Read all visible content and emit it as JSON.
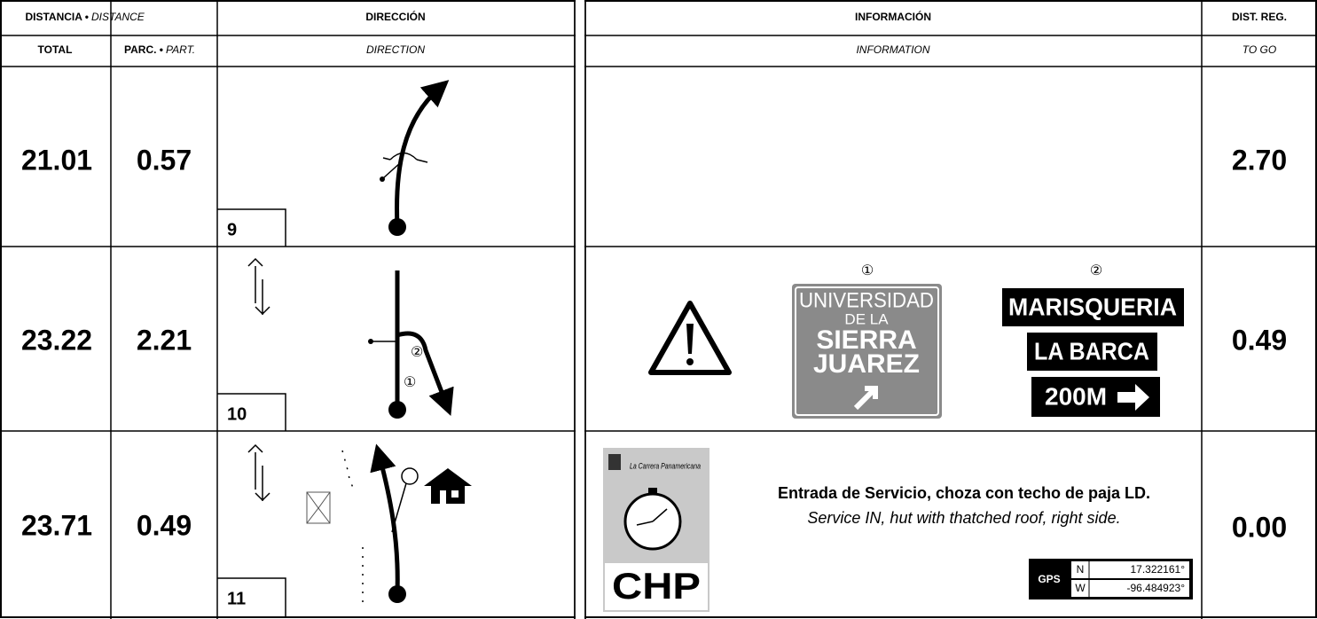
{
  "header": {
    "distance": "DISTANCIA •",
    "distance_en": "DISTANCE",
    "direction": "DIRECCIÓN",
    "information": "INFORMACIÓN",
    "to_go": "DIST. REG."
  },
  "subheader": {
    "total": "TOTAL",
    "partial": "PARC. •",
    "partial_en": "PART.",
    "direction": "DIRECTION",
    "information": "INFORMATION",
    "to_go": "TO GO"
  },
  "rows": [
    {
      "total": "21.01",
      "partial": "0.57",
      "number": "9",
      "to_go": "2.70"
    },
    {
      "total": "23.22",
      "partial": "2.21",
      "number": "10",
      "to_go": "0.49",
      "diagram_labels": [
        "②",
        "①"
      ],
      "signs": [
        {
          "marker": "①",
          "lines": [
            "UNIVERSIDAD",
            "DE LA",
            "SIERRA",
            "JUAREZ"
          ]
        },
        {
          "marker": "②",
          "lines": [
            "MARISQUERIA",
            "LA BARCA",
            "200M"
          ]
        }
      ]
    },
    {
      "total": "23.71",
      "partial": "0.49",
      "number": "11",
      "to_go": "0.00",
      "logo": {
        "title": "La Carrera Panamericana",
        "code": "CHP"
      },
      "text": "Entrada de Servicio, choza con techo de paja LD.",
      "text_en": "Service IN, hut with thatched roof, right side.",
      "gps": {
        "label": "GPS",
        "n_label": "N",
        "n_value": "17.322161°",
        "w_label": "W",
        "w_value": "-96.484923°"
      }
    }
  ]
}
